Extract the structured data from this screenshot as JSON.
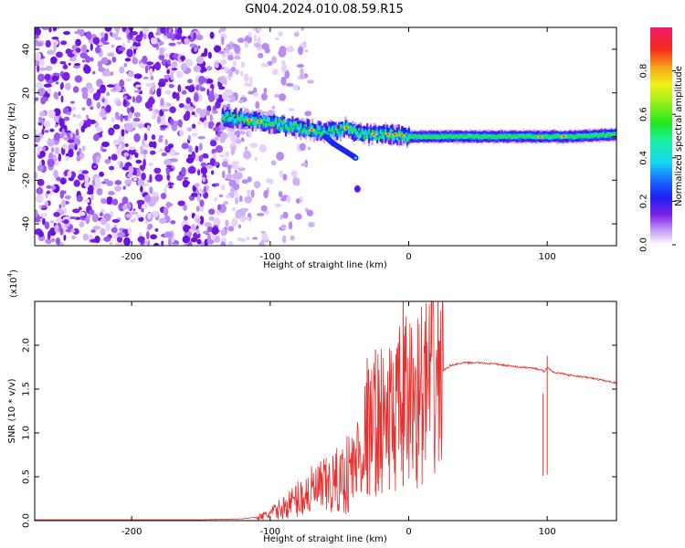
{
  "title": "GN04.2024.010.08.59.R15",
  "colors": {
    "signal_line": "#e8302e",
    "noise_speckle": "#7a1fe8",
    "axis": "#000000"
  },
  "chart_data": [
    {
      "type": "heatmap",
      "title": "GN04.2024.010.08.59.R15",
      "xlabel": "Height of straight line (km)",
      "ylabel": "Frequency (Hz)",
      "xlim": [
        -270,
        150
      ],
      "ylim": [
        -50,
        50
      ],
      "xticks": [
        -200,
        -100,
        0,
        100
      ],
      "yticks": [
        -40,
        -20,
        0,
        20,
        40
      ],
      "colorbar": {
        "label": "Normalized spectral amplitude",
        "range": [
          0.0,
          1.0
        ],
        "ticks": [
          0.0,
          0.2,
          0.4,
          0.6,
          0.8
        ],
        "tick_labels": [
          "0.0",
          "0.2",
          "0.4",
          "0.6",
          "0.8"
        ],
        "colormap": "white-purple-blue-cyan-green-yellow-orange-red-magenta"
      },
      "features": {
        "noise_region_x": [
          -270,
          -115
        ],
        "signal_ridge": {
          "x": [
            -135,
            -120,
            -110,
            -100,
            -90,
            -80,
            -70,
            -60,
            -50,
            -45,
            -40,
            -30,
            -20,
            -10,
            0,
            20,
            50,
            80,
            100,
            120,
            150
          ],
          "frequency": [
            9,
            8,
            7,
            6,
            5,
            4,
            3,
            2,
            3,
            4,
            2,
            1,
            1,
            1,
            0,
            0,
            0,
            0,
            0,
            0,
            1
          ]
        },
        "side_branch": {
          "x": [
            -60,
            -55,
            -50,
            -45,
            -40,
            -38
          ],
          "frequency": [
            0,
            -3,
            -5,
            -7,
            -9,
            -10
          ]
        },
        "isolated_blob": {
          "x": -37,
          "frequency": -24
        }
      }
    },
    {
      "type": "line",
      "title": "",
      "xlabel": "Height of straight line (km)",
      "ylabel": "SNR (10 * v/v)",
      "yscale_label": "(x10",
      "yscale_exponent": "4",
      "xlim": [
        -270,
        150
      ],
      "ylim": [
        0,
        2.5
      ],
      "xticks": [
        -200,
        -100,
        0,
        100
      ],
      "yticks": [
        0.0,
        0.5,
        1.0,
        1.5,
        2.0
      ],
      "ytick_labels": [
        "0.0",
        "0.5",
        "1.0",
        "1.5",
        "2.0"
      ],
      "series": [
        {
          "x": [
            -270,
            -200,
            -150,
            -120,
            -105,
            -100,
            -90,
            -80,
            -70,
            -60,
            -50,
            -40,
            -30,
            -20,
            -10,
            -5,
            -3,
            0,
            10,
            20,
            30,
            40,
            50,
            60,
            70,
            80,
            90,
            95,
            98,
            100,
            105,
            110,
            115,
            120,
            130,
            140,
            150
          ],
          "y": [
            0.01,
            0.01,
            0.01,
            0.02,
            0.05,
            0.08,
            0.15,
            0.25,
            0.33,
            0.38,
            0.45,
            0.6,
            1.0,
            1.15,
            1.2,
            1.3,
            1.35,
            1.35,
            1.45,
            1.65,
            1.77,
            1.8,
            1.8,
            1.79,
            1.77,
            1.75,
            1.74,
            1.72,
            1.7,
            1.75,
            1.69,
            1.68,
            1.66,
            1.65,
            1.63,
            1.6,
            1.57
          ]
        }
      ],
      "spikes": [
        {
          "x": -30,
          "y": 1.85
        },
        {
          "x": -24,
          "y": 1.95
        },
        {
          "x": -14,
          "y": 1.7
        },
        {
          "x": -4,
          "y": 2.5
        },
        {
          "x": 100,
          "y": 1.88
        },
        {
          "x": 97,
          "y": 1.45
        }
      ]
    }
  ]
}
